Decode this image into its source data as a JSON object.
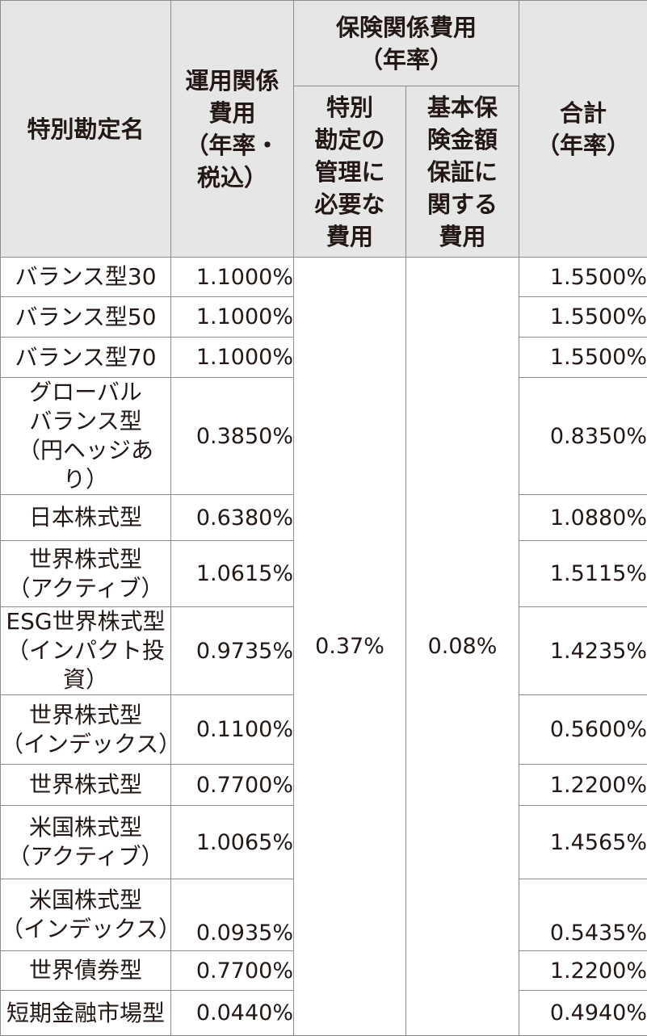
{
  "header": {
    "name": "特別勘定名",
    "operation": "運用関係\n費用\n（年率・\n税込）",
    "insurance_group": "保険関係費用\n（年率）",
    "insurance_management": "特別\n勘定の\n管理に\n必要な\n費用",
    "insurance_guarantee": "基本保\n険金額\n保証に\n関する\n費用",
    "total": "合計\n（年率）"
  },
  "shared": {
    "management_fee": "0.37%",
    "guarantee_fee": "0.08%"
  },
  "rows": [
    {
      "name": "バランス型30",
      "operation": "1.1000%",
      "total": "1.5500%"
    },
    {
      "name": "バランス型50",
      "operation": "1.1000%",
      "total": "1.5500%"
    },
    {
      "name": "バランス型70",
      "operation": "1.1000%",
      "total": "1.5500%"
    },
    {
      "name": "グローバル\nバランス型\n（円ヘッジあり）",
      "operation": "0.3850%",
      "total": "0.8350%"
    },
    {
      "name": "日本株式型",
      "operation": "0.6380%",
      "total": "1.0880%"
    },
    {
      "name": "世界株式型\n（アクティブ）",
      "operation": "1.0615%",
      "total": "1.5115%"
    },
    {
      "name": "ESG世界株式型\n（インパクト投資）",
      "operation": "0.9735%",
      "total": "1.4235%"
    },
    {
      "name": "世界株式型\n（インデックス）",
      "operation": "0.1100%",
      "total": "0.5600%"
    },
    {
      "name": "世界株式型",
      "operation": "0.7700%",
      "total": "1.2200%"
    },
    {
      "name": "米国株式型\n（アクティブ）",
      "operation": "1.0065%",
      "total": "1.4565%"
    },
    {
      "name": "米国株式型\n（インデックス）",
      "operation": "0.0935%",
      "total": "0.5435%"
    },
    {
      "name": "世界債券型",
      "operation": "0.7700%",
      "total": "1.2200%"
    },
    {
      "name": "短期金融市場型",
      "operation": "0.0440%",
      "total": "0.4940%"
    }
  ]
}
